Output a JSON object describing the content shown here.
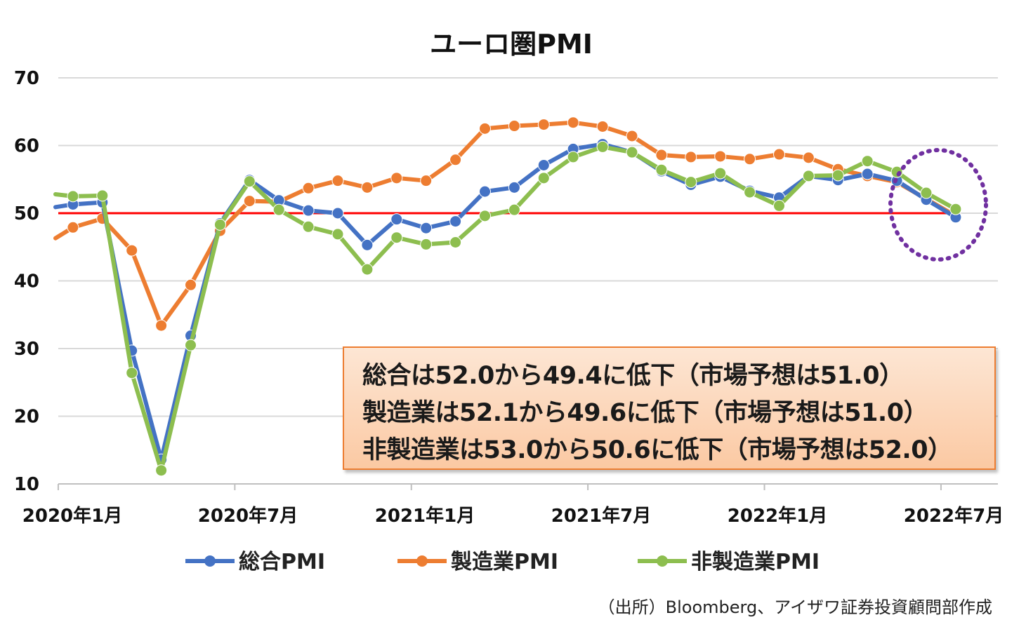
{
  "chart_data": {
    "type": "line",
    "title": "ユーロ圏PMI",
    "ylim": [
      10,
      70
    ],
    "yticks": [
      10,
      20,
      30,
      40,
      50,
      60,
      70
    ],
    "x_tick_labels": [
      "2020年1月",
      "2020年7月",
      "2021年1月",
      "2021年7月",
      "2022年1月",
      "2022年7月"
    ],
    "x": [
      "2019-12",
      "2020-01",
      "2020-02",
      "2020-03",
      "2020-04",
      "2020-05",
      "2020-06",
      "2020-07",
      "2020-08",
      "2020-09",
      "2020-10",
      "2020-11",
      "2020-12",
      "2021-01",
      "2021-02",
      "2021-03",
      "2021-04",
      "2021-05",
      "2021-06",
      "2021-07",
      "2021-08",
      "2021-09",
      "2021-10",
      "2021-11",
      "2021-12",
      "2022-01",
      "2022-02",
      "2022-03",
      "2022-04",
      "2022-05",
      "2022-06",
      "2022-07"
    ],
    "series": [
      {
        "name": "総合PMI",
        "color": "#4472C4",
        "values": [
          50.9,
          51.3,
          51.6,
          29.7,
          13.6,
          31.9,
          48.5,
          54.9,
          51.9,
          50.4,
          50.0,
          45.3,
          49.1,
          47.8,
          48.8,
          53.2,
          53.8,
          57.1,
          59.5,
          60.2,
          59.0,
          56.2,
          54.2,
          55.4,
          53.3,
          52.3,
          55.5,
          54.9,
          55.8,
          54.8,
          52.0,
          49.4
        ]
      },
      {
        "name": "製造業PMI",
        "color": "#ED7D31",
        "values": [
          46.3,
          47.9,
          49.2,
          44.5,
          33.4,
          39.4,
          47.4,
          51.8,
          51.7,
          53.7,
          54.8,
          53.8,
          55.2,
          54.8,
          57.9,
          62.5,
          62.9,
          63.1,
          63.4,
          62.8,
          61.4,
          58.6,
          58.3,
          58.4,
          58.0,
          58.7,
          58.2,
          56.5,
          55.5,
          54.6,
          52.1,
          49.6
        ]
      },
      {
        "name": "非製造業PMI",
        "color": "#8DBE4F",
        "values": [
          52.8,
          52.5,
          52.6,
          26.4,
          12.0,
          30.5,
          48.3,
          54.7,
          50.5,
          48.0,
          46.9,
          41.7,
          46.4,
          45.4,
          45.7,
          49.6,
          50.5,
          55.2,
          58.3,
          59.8,
          59.0,
          56.4,
          54.6,
          55.9,
          53.1,
          51.1,
          55.5,
          55.6,
          57.7,
          56.1,
          53.0,
          50.6
        ]
      }
    ],
    "reference_line": {
      "value": 50,
      "color": "#FF0000"
    },
    "highlight_ellipse_color": "#7030A0",
    "grid": true,
    "legend": "bottom"
  },
  "annotation": {
    "lines": [
      "総合は52.0から49.4に低下（市場予想は51.0）",
      "製造業は52.1から49.6に低下（市場予想は51.0）",
      "非製造業は53.0から50.6に低下（市場予想は52.0）"
    ]
  },
  "source_note": "（出所）Bloomberg、アイザワ証券投資顧問部作成"
}
